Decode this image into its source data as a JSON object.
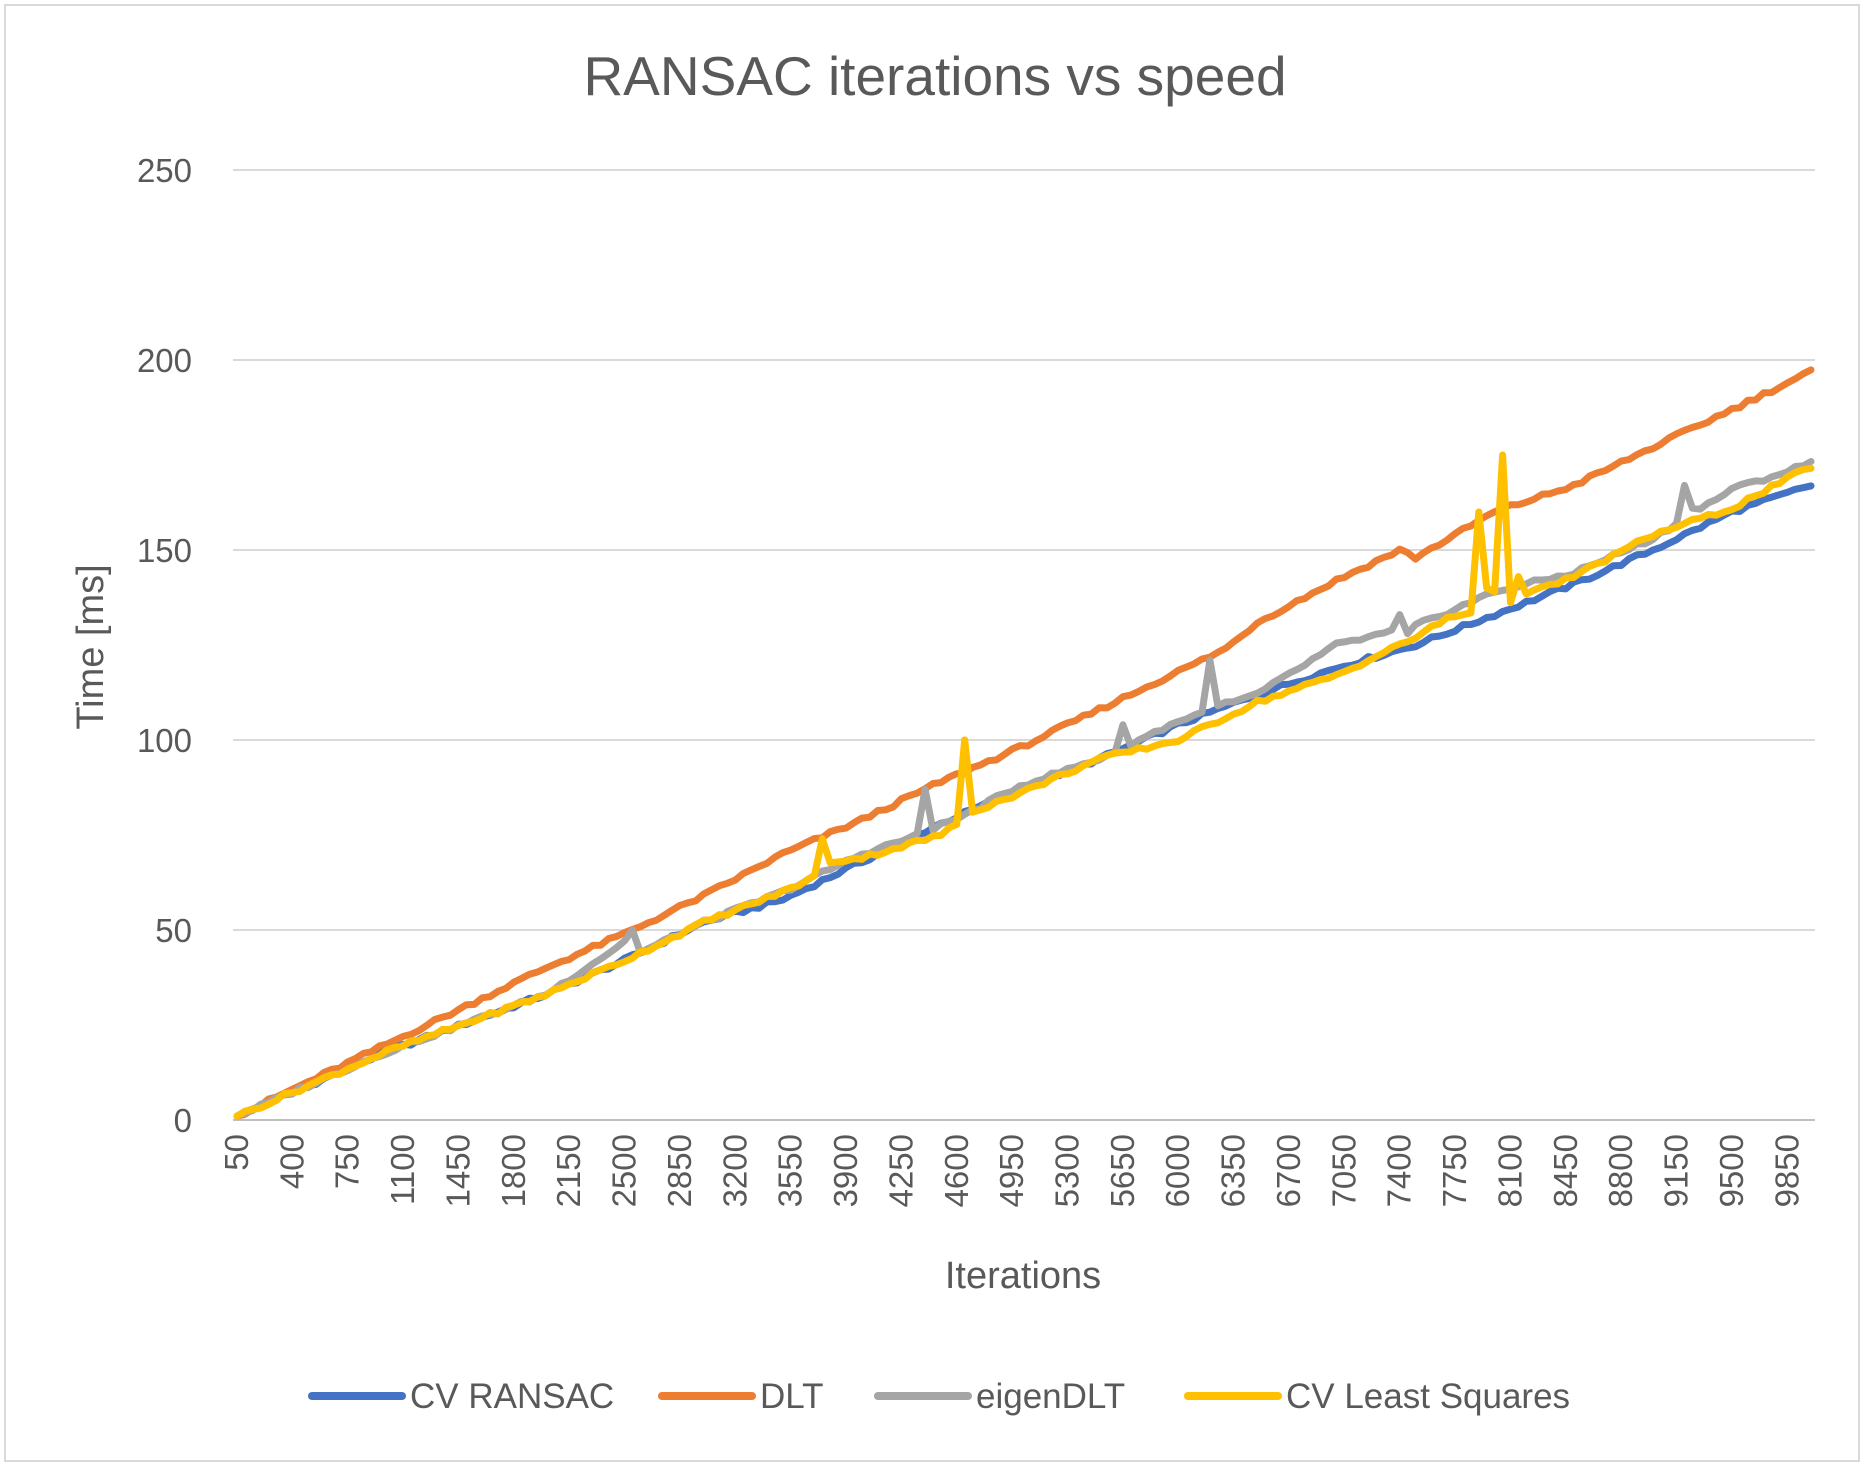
{
  "chart_data": {
    "type": "line",
    "title": "RANSAC iterations vs speed",
    "xlabel": "Iterations",
    "ylabel": "Time [ms]",
    "ylim": [
      0,
      250
    ],
    "yticks": [
      0,
      50,
      100,
      150,
      200,
      250
    ],
    "grid": true,
    "legend": "bottom",
    "x": {
      "start": 50,
      "step": 50,
      "end": 10000
    },
    "xtick_labels": [
      "50",
      "400",
      "750",
      "1100",
      "1450",
      "1800",
      "2150",
      "2500",
      "2850",
      "3200",
      "3550",
      "3900",
      "4250",
      "4600",
      "4950",
      "5300",
      "5650",
      "6000",
      "6350",
      "6700",
      "7050",
      "7400",
      "7750",
      "8100",
      "8450",
      "8800",
      "9150",
      "9500",
      "9850"
    ],
    "colors": {
      "gridline": "#d9d9d9",
      "axis": "#bfbfbf"
    },
    "series": [
      {
        "name": "CV RANSAC",
        "color": "#4472c4",
        "anchors": [
          [
            50,
            1
          ],
          [
            1000,
            18
          ],
          [
            2000,
            33
          ],
          [
            2500,
            42
          ],
          [
            3000,
            52
          ],
          [
            3500,
            58
          ],
          [
            4000,
            68
          ],
          [
            4500,
            78
          ],
          [
            5000,
            87
          ],
          [
            5500,
            95
          ],
          [
            6000,
            104
          ],
          [
            6500,
            112
          ],
          [
            7000,
            119
          ],
          [
            7500,
            125
          ],
          [
            8000,
            133
          ],
          [
            8500,
            141
          ],
          [
            9000,
            150
          ],
          [
            9500,
            160
          ],
          [
            10000,
            167
          ]
        ],
        "spikes": []
      },
      {
        "name": "DLT",
        "color": "#ed7d31",
        "anchors": [
          [
            50,
            1
          ],
          [
            1000,
            20
          ],
          [
            2000,
            40
          ],
          [
            2500,
            49
          ],
          [
            3000,
            59
          ],
          [
            3500,
            70
          ],
          [
            4000,
            79
          ],
          [
            4500,
            89
          ],
          [
            5000,
            98
          ],
          [
            5500,
            108
          ],
          [
            6000,
            118
          ],
          [
            6300,
            124
          ],
          [
            6500,
            131
          ],
          [
            7000,
            142
          ],
          [
            7400,
            150
          ],
          [
            7500,
            148
          ],
          [
            8000,
            160
          ],
          [
            8500,
            167
          ],
          [
            9000,
            177
          ],
          [
            9500,
            187
          ],
          [
            10000,
            197
          ]
        ],
        "spikes": []
      },
      {
        "name": "eigenDLT",
        "color": "#a5a5a5",
        "anchors": [
          [
            50,
            1
          ],
          [
            1000,
            18
          ],
          [
            2000,
            33
          ],
          [
            2400,
            44
          ],
          [
            2500,
            47
          ],
          [
            2600,
            44
          ],
          [
            3000,
            52
          ],
          [
            3500,
            60
          ],
          [
            4000,
            70
          ],
          [
            4500,
            77
          ],
          [
            5000,
            88
          ],
          [
            5500,
            95
          ],
          [
            6000,
            105
          ],
          [
            6500,
            112
          ],
          [
            7000,
            125
          ],
          [
            7500,
            130
          ],
          [
            8000,
            139
          ],
          [
            8500,
            144
          ],
          [
            9000,
            153
          ],
          [
            9500,
            166
          ],
          [
            9800,
            170
          ],
          [
            10000,
            173
          ]
        ],
        "spikes": [
          [
            2550,
            50
          ],
          [
            4400,
            87
          ],
          [
            4500,
            78
          ],
          [
            5650,
            104
          ],
          [
            6200,
            121
          ],
          [
            6300,
            110
          ],
          [
            7400,
            133
          ],
          [
            7450,
            128
          ],
          [
            9200,
            167
          ],
          [
            9250,
            161
          ]
        ]
      },
      {
        "name": "CV Least Squares",
        "color": "#ffc000",
        "anchors": [
          [
            50,
            1
          ],
          [
            1000,
            18
          ],
          [
            2000,
            33
          ],
          [
            2500,
            42
          ],
          [
            3000,
            52
          ],
          [
            3500,
            60
          ],
          [
            3700,
            64
          ],
          [
            3800,
            68
          ],
          [
            4000,
            69
          ],
          [
            4500,
            75
          ],
          [
            4750,
            82
          ],
          [
            5000,
            86
          ],
          [
            5500,
            95
          ],
          [
            6000,
            100
          ],
          [
            6200,
            104
          ],
          [
            6500,
            110
          ],
          [
            7000,
            117
          ],
          [
            7500,
            127
          ],
          [
            7700,
            132
          ],
          [
            8000,
            135
          ],
          [
            8500,
            143
          ],
          [
            9000,
            154
          ],
          [
            9500,
            161
          ],
          [
            10000,
            172
          ]
        ],
        "spikes": [
          [
            3750,
            74
          ],
          [
            4650,
            100
          ],
          [
            4700,
            81
          ],
          [
            7900,
            160
          ],
          [
            7950,
            140
          ],
          [
            8000,
            139
          ],
          [
            8050,
            175
          ],
          [
            8150,
            143
          ],
          [
            9450,
            160
          ]
        ]
      }
    ]
  }
}
